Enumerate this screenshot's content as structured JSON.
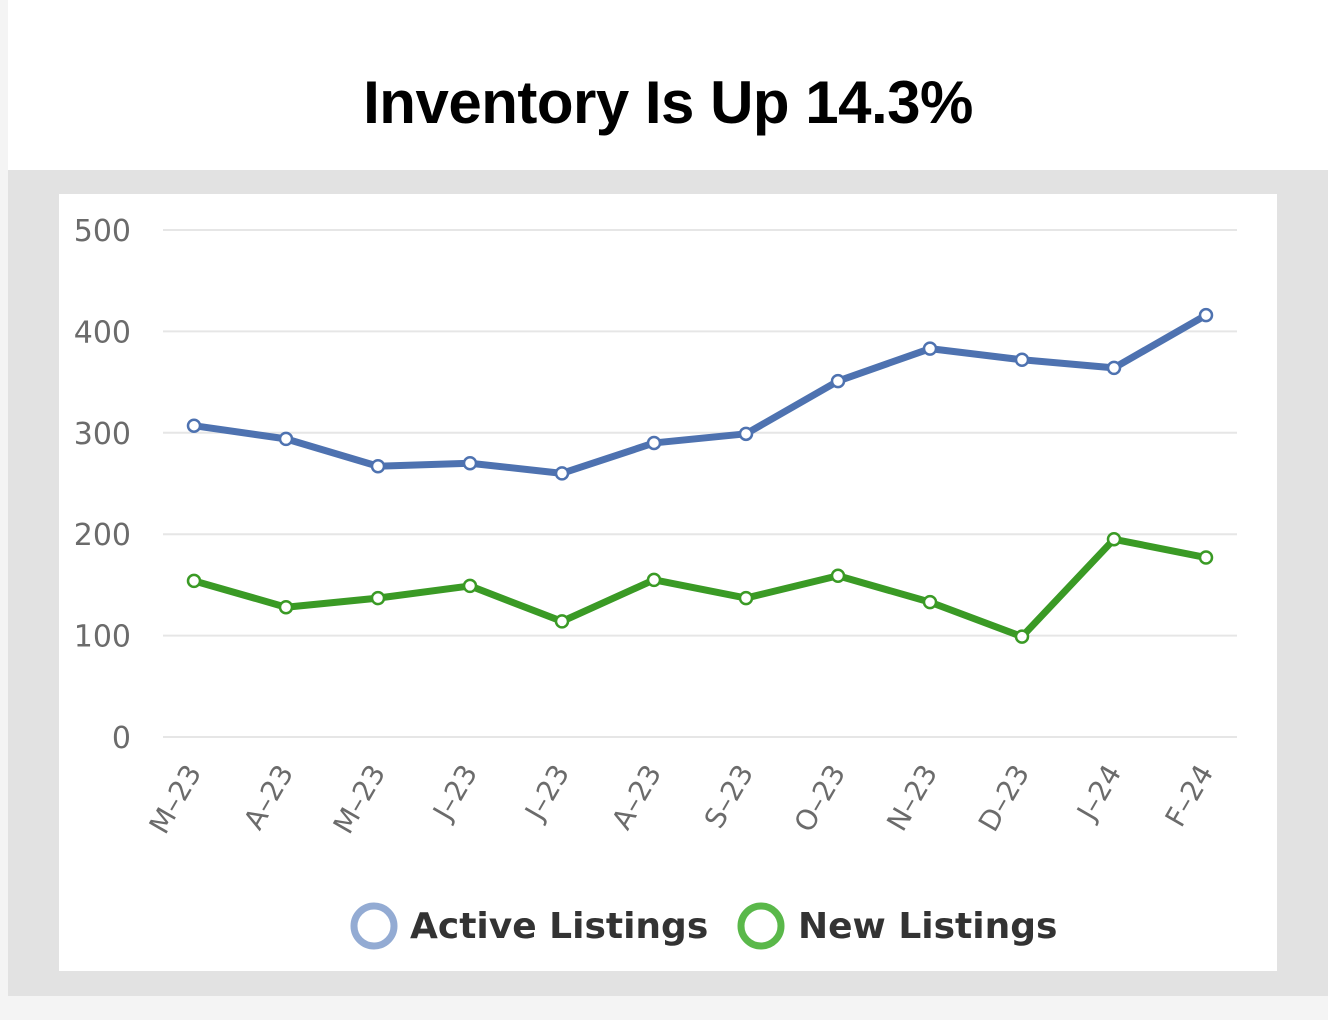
{
  "header": {
    "title": "Inventory Is Up 14.3%"
  },
  "chart_data": {
    "type": "line",
    "title": "Inventory Is Up 14.3%",
    "xlabel": "",
    "ylabel": "",
    "categories": [
      "M–23",
      "A–23",
      "M–23",
      "J–23",
      "J–23",
      "A–23",
      "S–23",
      "O–23",
      "N–23",
      "D–23",
      "J–24",
      "F–24"
    ],
    "yticks": [
      "0",
      "100",
      "200",
      "300",
      "400",
      "500"
    ],
    "ylim": [
      0,
      500
    ],
    "grid": true,
    "legend": "bottom",
    "series": [
      {
        "name": "Active Listings",
        "color": "#4e72b0",
        "marker_color": "#93abd3",
        "values": [
          307,
          294,
          267,
          270,
          260,
          290,
          299,
          351,
          383,
          372,
          364,
          416
        ]
      },
      {
        "name": "New Listings",
        "color": "#3a9a25",
        "marker_color": "#5ab84a",
        "values": [
          154,
          128,
          137,
          149,
          114,
          155,
          137,
          159,
          133,
          99,
          195,
          177
        ]
      }
    ]
  }
}
